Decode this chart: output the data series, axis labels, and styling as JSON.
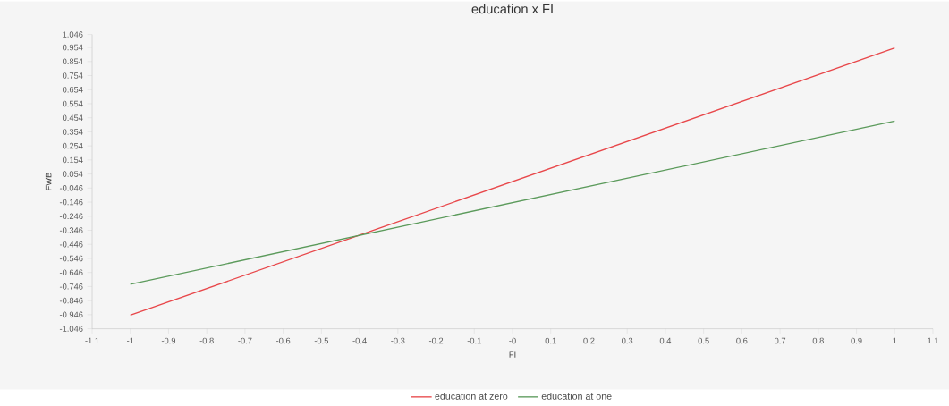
{
  "chart_data": {
    "type": "line",
    "title": "education x FI",
    "xlabel": "FI",
    "ylabel": "FWB",
    "x": [
      -1,
      1
    ],
    "series": [
      {
        "name": "education at zero",
        "color": "#e8474a",
        "values": [
          -0.95,
          0.95
        ]
      },
      {
        "name": "education at one",
        "color": "#5b9a5b",
        "values": [
          -0.73,
          0.43
        ]
      }
    ],
    "xlim": [
      -1.1,
      1.1
    ],
    "xticks": [
      -1.1,
      -1,
      -0.9,
      -0.8,
      -0.7,
      -0.6,
      -0.5,
      -0.4,
      -0.3,
      -0.2,
      -0.1,
      {
        "value": 0,
        "label": "-0"
      },
      0.1,
      0.2,
      0.3,
      0.4,
      0.5,
      0.6,
      0.7,
      0.8,
      0.9,
      1,
      1.1
    ],
    "ylim": [
      -1.046,
      1.046
    ],
    "yticks": [
      -1.046,
      -0.946,
      -0.846,
      -0.746,
      -0.646,
      -0.546,
      -0.446,
      -0.346,
      -0.246,
      -0.146,
      -0.046,
      0.054,
      0.154,
      0.254,
      0.354,
      0.454,
      0.554,
      0.654,
      0.754,
      0.854,
      0.954,
      1.046
    ],
    "legend": "bottom"
  }
}
